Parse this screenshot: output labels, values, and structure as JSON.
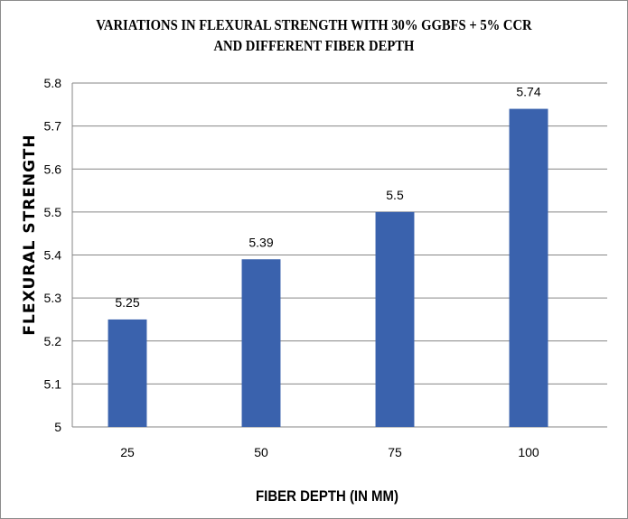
{
  "chart_data": {
    "type": "bar",
    "title": "VARIATIONS  IN  FLEXURAL STRENGTH WITH 30% GGBFS + 5% CCR AND DIFFERENT FIBER DEPTH",
    "title_lines": [
      "VARIATIONS  IN  FLEXURAL STRENGTH WITH 30% GGBFS + 5% CCR",
      "AND DIFFERENT FIBER DEPTH"
    ],
    "categories": [
      "25",
      "50",
      "75",
      "100"
    ],
    "values": [
      5.25,
      5.39,
      5.5,
      5.74
    ],
    "data_labels": [
      "5.25",
      "5.39",
      "5.5",
      "5.74"
    ],
    "xlabel": "FIBER DEPTH (IN MM)",
    "ylabel": "FLEXURAL STRENGTH",
    "ylim": [
      5,
      5.8
    ],
    "yticks": [
      "5",
      "5.1",
      "5.2",
      "5.3",
      "5.4",
      "5.5",
      "5.6",
      "5.7",
      "5.8"
    ],
    "grid": true,
    "legend": "none",
    "bar_color": "#3A62AD",
    "grid_color": "#868686"
  }
}
